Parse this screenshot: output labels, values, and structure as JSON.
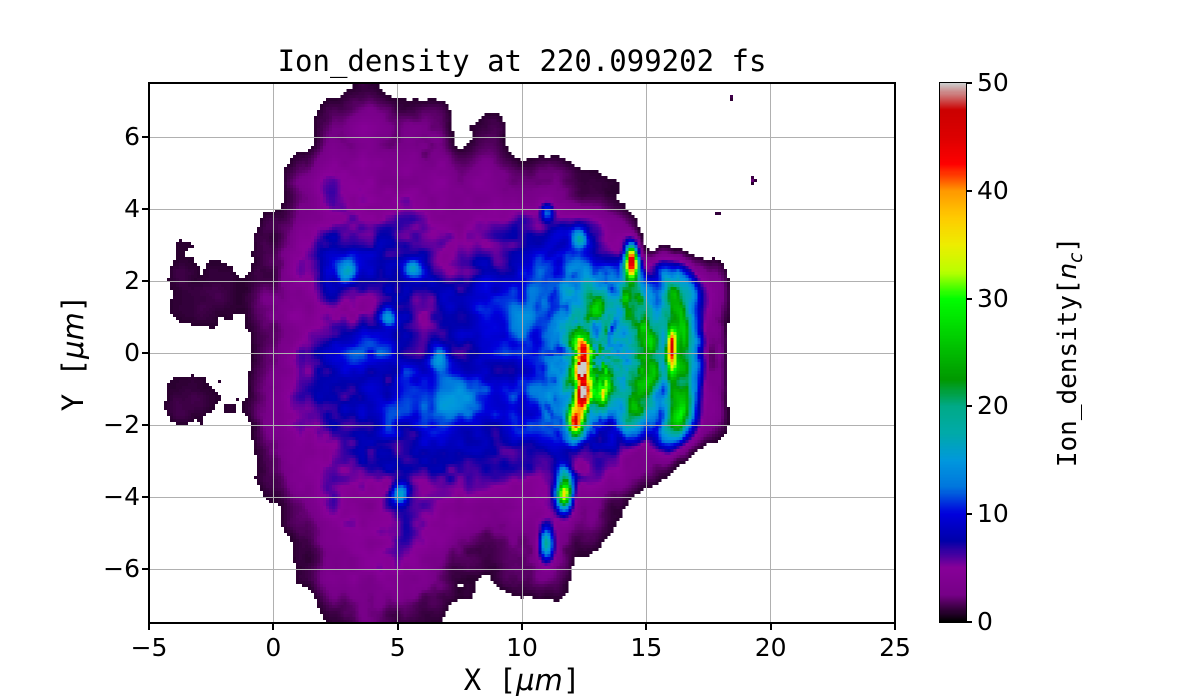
{
  "figure": {
    "title": "Ion_density at 220.099202 fs",
    "background": "#ffffff"
  },
  "axes": {
    "xlabel": {
      "prefix": "X [",
      "math": "μm",
      "suffix": "]"
    },
    "ylabel": {
      "prefix": "Y [",
      "math": "μm",
      "suffix": "]"
    },
    "xticks": {
      "values": [
        -5,
        0,
        5,
        10,
        15,
        20,
        25
      ],
      "labels": [
        "−5",
        "0",
        "5",
        "10",
        "15",
        "20",
        "25"
      ]
    },
    "yticks": {
      "values": [
        6,
        4,
        2,
        0,
        -2,
        -4,
        -6
      ],
      "labels": [
        "6",
        "4",
        "2",
        "0",
        "−2",
        "−4",
        "−6"
      ]
    },
    "xlim": [
      -5,
      25
    ],
    "ylim": [
      -7.5,
      7.5
    ],
    "grid_color": "#b0b0b0",
    "spine_color": "#000000"
  },
  "colorbar": {
    "label": {
      "prefix": "Ion_density[",
      "math": "n",
      "sub": "c",
      "suffix": "]"
    },
    "ticks": {
      "values": [
        0,
        10,
        20,
        30,
        40,
        50
      ],
      "labels": [
        "0",
        "10",
        "20",
        "30",
        "40",
        "50"
      ]
    },
    "vmin": 0,
    "vmax": 50
  },
  "chart_data": {
    "type": "heatmap",
    "title": "Ion_density at 220.099202 fs",
    "xlabel": "X [μm]",
    "ylabel": "Y [μm]",
    "colorbar_label": "Ion_density[n_c]",
    "xlim": [
      -5,
      25
    ],
    "ylim": [
      -7.5,
      7.5
    ],
    "vmin": 0,
    "vmax": 50,
    "grid_on": true,
    "colormap": {
      "name": "nipy_spectral",
      "stops": [
        [
          0.0,
          0,
          0,
          0
        ],
        [
          0.05,
          119,
          0,
          136
        ],
        [
          0.1,
          136,
          0,
          153
        ],
        [
          0.15,
          0,
          0,
          170
        ],
        [
          0.2,
          0,
          0,
          221
        ],
        [
          0.25,
          0,
          119,
          221
        ],
        [
          0.3,
          0,
          153,
          221
        ],
        [
          0.35,
          0,
          170,
          170
        ],
        [
          0.4,
          0,
          170,
          136
        ],
        [
          0.45,
          0,
          153,
          0
        ],
        [
          0.5,
          0,
          187,
          0
        ],
        [
          0.55,
          0,
          221,
          0
        ],
        [
          0.6,
          0,
          255,
          0
        ],
        [
          0.65,
          187,
          255,
          0
        ],
        [
          0.7,
          238,
          238,
          0
        ],
        [
          0.75,
          255,
          204,
          0
        ],
        [
          0.8,
          255,
          153,
          0
        ],
        [
          0.85,
          255,
          0,
          0
        ],
        [
          0.9,
          221,
          0,
          0
        ],
        [
          0.95,
          204,
          0,
          0
        ],
        [
          1.0,
          204,
          204,
          204
        ]
      ]
    },
    "density_grid": {
      "units": "n_c",
      "x0": -5,
      "dx": 1.25,
      "y0": 7.5,
      "dy": -1.5,
      "values": [
        [
          0,
          0,
          0,
          0,
          0,
          0,
          0.5,
          1.5,
          0.5,
          0,
          0,
          0,
          0,
          0,
          0,
          0,
          0,
          0,
          0,
          0,
          0
        ],
        [
          0,
          0,
          0,
          0,
          0,
          0.5,
          2,
          4,
          3,
          4,
          1,
          1.5,
          0,
          0,
          0,
          0,
          0,
          0,
          0,
          0,
          0
        ],
        [
          0,
          0,
          0,
          0,
          0.5,
          2,
          5,
          6,
          5,
          5,
          4,
          3,
          2,
          2.5,
          1,
          0.8,
          0,
          0,
          0,
          0,
          0
        ],
        [
          0.3,
          0.7,
          0.7,
          0.5,
          2,
          4,
          6,
          7,
          7,
          6,
          6,
          7,
          8,
          8,
          7,
          4,
          0.8,
          0,
          0,
          0,
          0
        ],
        [
          0.5,
          1,
          1,
          0.8,
          2.5,
          5,
          8,
          8,
          9,
          8,
          9,
          10,
          11,
          12,
          13,
          14,
          16,
          17,
          5,
          0,
          0
        ],
        [
          0.3,
          0.5,
          0.5,
          0.5,
          2,
          5,
          8,
          9,
          10,
          8,
          8,
          9,
          11,
          13,
          20,
          16,
          17,
          19,
          2.5,
          0,
          0
        ],
        [
          0.3,
          1,
          1,
          0.8,
          2.5,
          5,
          7,
          8,
          10,
          11,
          10,
          9,
          11,
          14,
          21,
          15,
          15,
          17,
          4,
          0,
          0
        ],
        [
          0,
          0.5,
          0.7,
          0.5,
          1.5,
          4,
          6,
          7,
          8,
          8,
          7,
          6,
          6,
          7,
          6,
          5,
          2,
          0.5,
          0,
          0,
          0
        ],
        [
          0,
          0,
          0,
          0,
          0.5,
          2,
          5,
          6,
          6,
          5,
          5,
          3,
          4,
          5,
          3,
          1,
          0,
          0,
          0,
          0,
          0
        ],
        [
          0,
          0,
          0,
          0,
          0,
          1,
          3,
          5,
          5,
          4,
          2,
          1,
          2,
          2,
          0.5,
          0,
          0,
          0,
          0,
          0,
          0
        ],
        [
          0,
          0,
          0,
          0,
          0,
          0,
          1,
          2,
          2,
          1,
          0,
          0,
          0,
          0,
          0,
          0,
          0,
          0,
          0,
          0,
          0
        ]
      ]
    },
    "features": [
      {
        "type": "blob",
        "cx": 12.45,
        "cy": -0.55,
        "sx": 0.3,
        "sy": 1.05,
        "amp": 34,
        "mode": "add"
      },
      {
        "type": "blob",
        "cx": 12.15,
        "cy": -1.85,
        "sx": 0.32,
        "sy": 0.42,
        "amp": 30,
        "mode": "add"
      },
      {
        "type": "blob",
        "cx": 16.0,
        "cy": 0.05,
        "sx": 0.2,
        "sy": 0.6,
        "amp": 26,
        "mode": "add"
      },
      {
        "type": "blob",
        "cx": 14.4,
        "cy": 2.5,
        "sx": 0.26,
        "sy": 0.46,
        "amp": 45,
        "mode": "add"
      },
      {
        "type": "blob",
        "cx": 13.3,
        "cy": -1.0,
        "sx": 0.36,
        "sy": 0.56,
        "amp": 16,
        "mode": "add"
      },
      {
        "type": "blob",
        "cx": 11.7,
        "cy": -3.8,
        "sx": 0.3,
        "sy": 0.5,
        "amp": 28,
        "mode": "add"
      },
      {
        "type": "blob",
        "cx": 13.0,
        "cy": 1.3,
        "sx": 0.46,
        "sy": 0.46,
        "amp": 12,
        "mode": "add"
      },
      {
        "type": "blob",
        "cx": 11.0,
        "cy": -5.3,
        "sx": 0.3,
        "sy": 0.46,
        "amp": 16,
        "mode": "add"
      },
      {
        "type": "blob",
        "cx": 2.95,
        "cy": 2.3,
        "sx": 0.36,
        "sy": 0.3,
        "amp": 10,
        "mode": "add"
      },
      {
        "type": "blob",
        "cx": 4.6,
        "cy": 1.0,
        "sx": 0.3,
        "sy": 0.3,
        "amp": 8,
        "mode": "add"
      },
      {
        "type": "blob",
        "cx": 5.6,
        "cy": 2.3,
        "sx": 0.36,
        "sy": 0.3,
        "amp": 7,
        "mode": "add"
      },
      {
        "type": "blob",
        "cx": 6.6,
        "cy": -0.1,
        "sx": 0.4,
        "sy": 0.36,
        "amp": 8,
        "mode": "add"
      },
      {
        "type": "blob",
        "cx": 5.1,
        "cy": -3.9,
        "sx": 0.36,
        "sy": 0.3,
        "amp": 10,
        "mode": "add"
      },
      {
        "type": "blob",
        "cx": 12.3,
        "cy": 3.2,
        "sx": 0.3,
        "sy": 0.3,
        "amp": 8,
        "mode": "add"
      },
      {
        "type": "blob",
        "cx": 11.0,
        "cy": 3.9,
        "sx": 0.26,
        "sy": 0.26,
        "amp": 7,
        "mode": "add"
      },
      {
        "type": "arc",
        "cx": 13.1,
        "cy": -0.1,
        "r": 3.6,
        "w": 0.5,
        "amp": 6,
        "span": 55,
        "fade": 15,
        "mode": "add"
      },
      {
        "type": "arc",
        "cx": 12.9,
        "cy": -0.2,
        "r": 2.3,
        "w": 0.45,
        "amp": 7,
        "span": 70,
        "fade": 20,
        "mode": "add"
      },
      {
        "type": "arc",
        "cx": 13.1,
        "cy": -0.1,
        "r": 3.7,
        "w": 0.55,
        "amp": 15,
        "span": 48,
        "fade": 14,
        "mode": "max"
      },
      {
        "type": "blob",
        "cx": 17.7,
        "cy": -0.1,
        "sx": 0.55,
        "sy": 2.1,
        "amp": 2.5,
        "p": 4,
        "mode": "max"
      },
      {
        "type": "blob",
        "cx": 19.3,
        "cy": 4.8,
        "sx": 0.12,
        "sy": 0.1,
        "amp": 2,
        "mode": "max"
      },
      {
        "type": "blob",
        "cx": 17.9,
        "cy": 3.9,
        "sx": 0.1,
        "sy": 0.09,
        "amp": 1.8,
        "mode": "max"
      },
      {
        "type": "blob",
        "cx": 18.4,
        "cy": 7.1,
        "sx": 0.1,
        "sy": 0.09,
        "amp": 1.8,
        "mode": "max"
      }
    ]
  }
}
